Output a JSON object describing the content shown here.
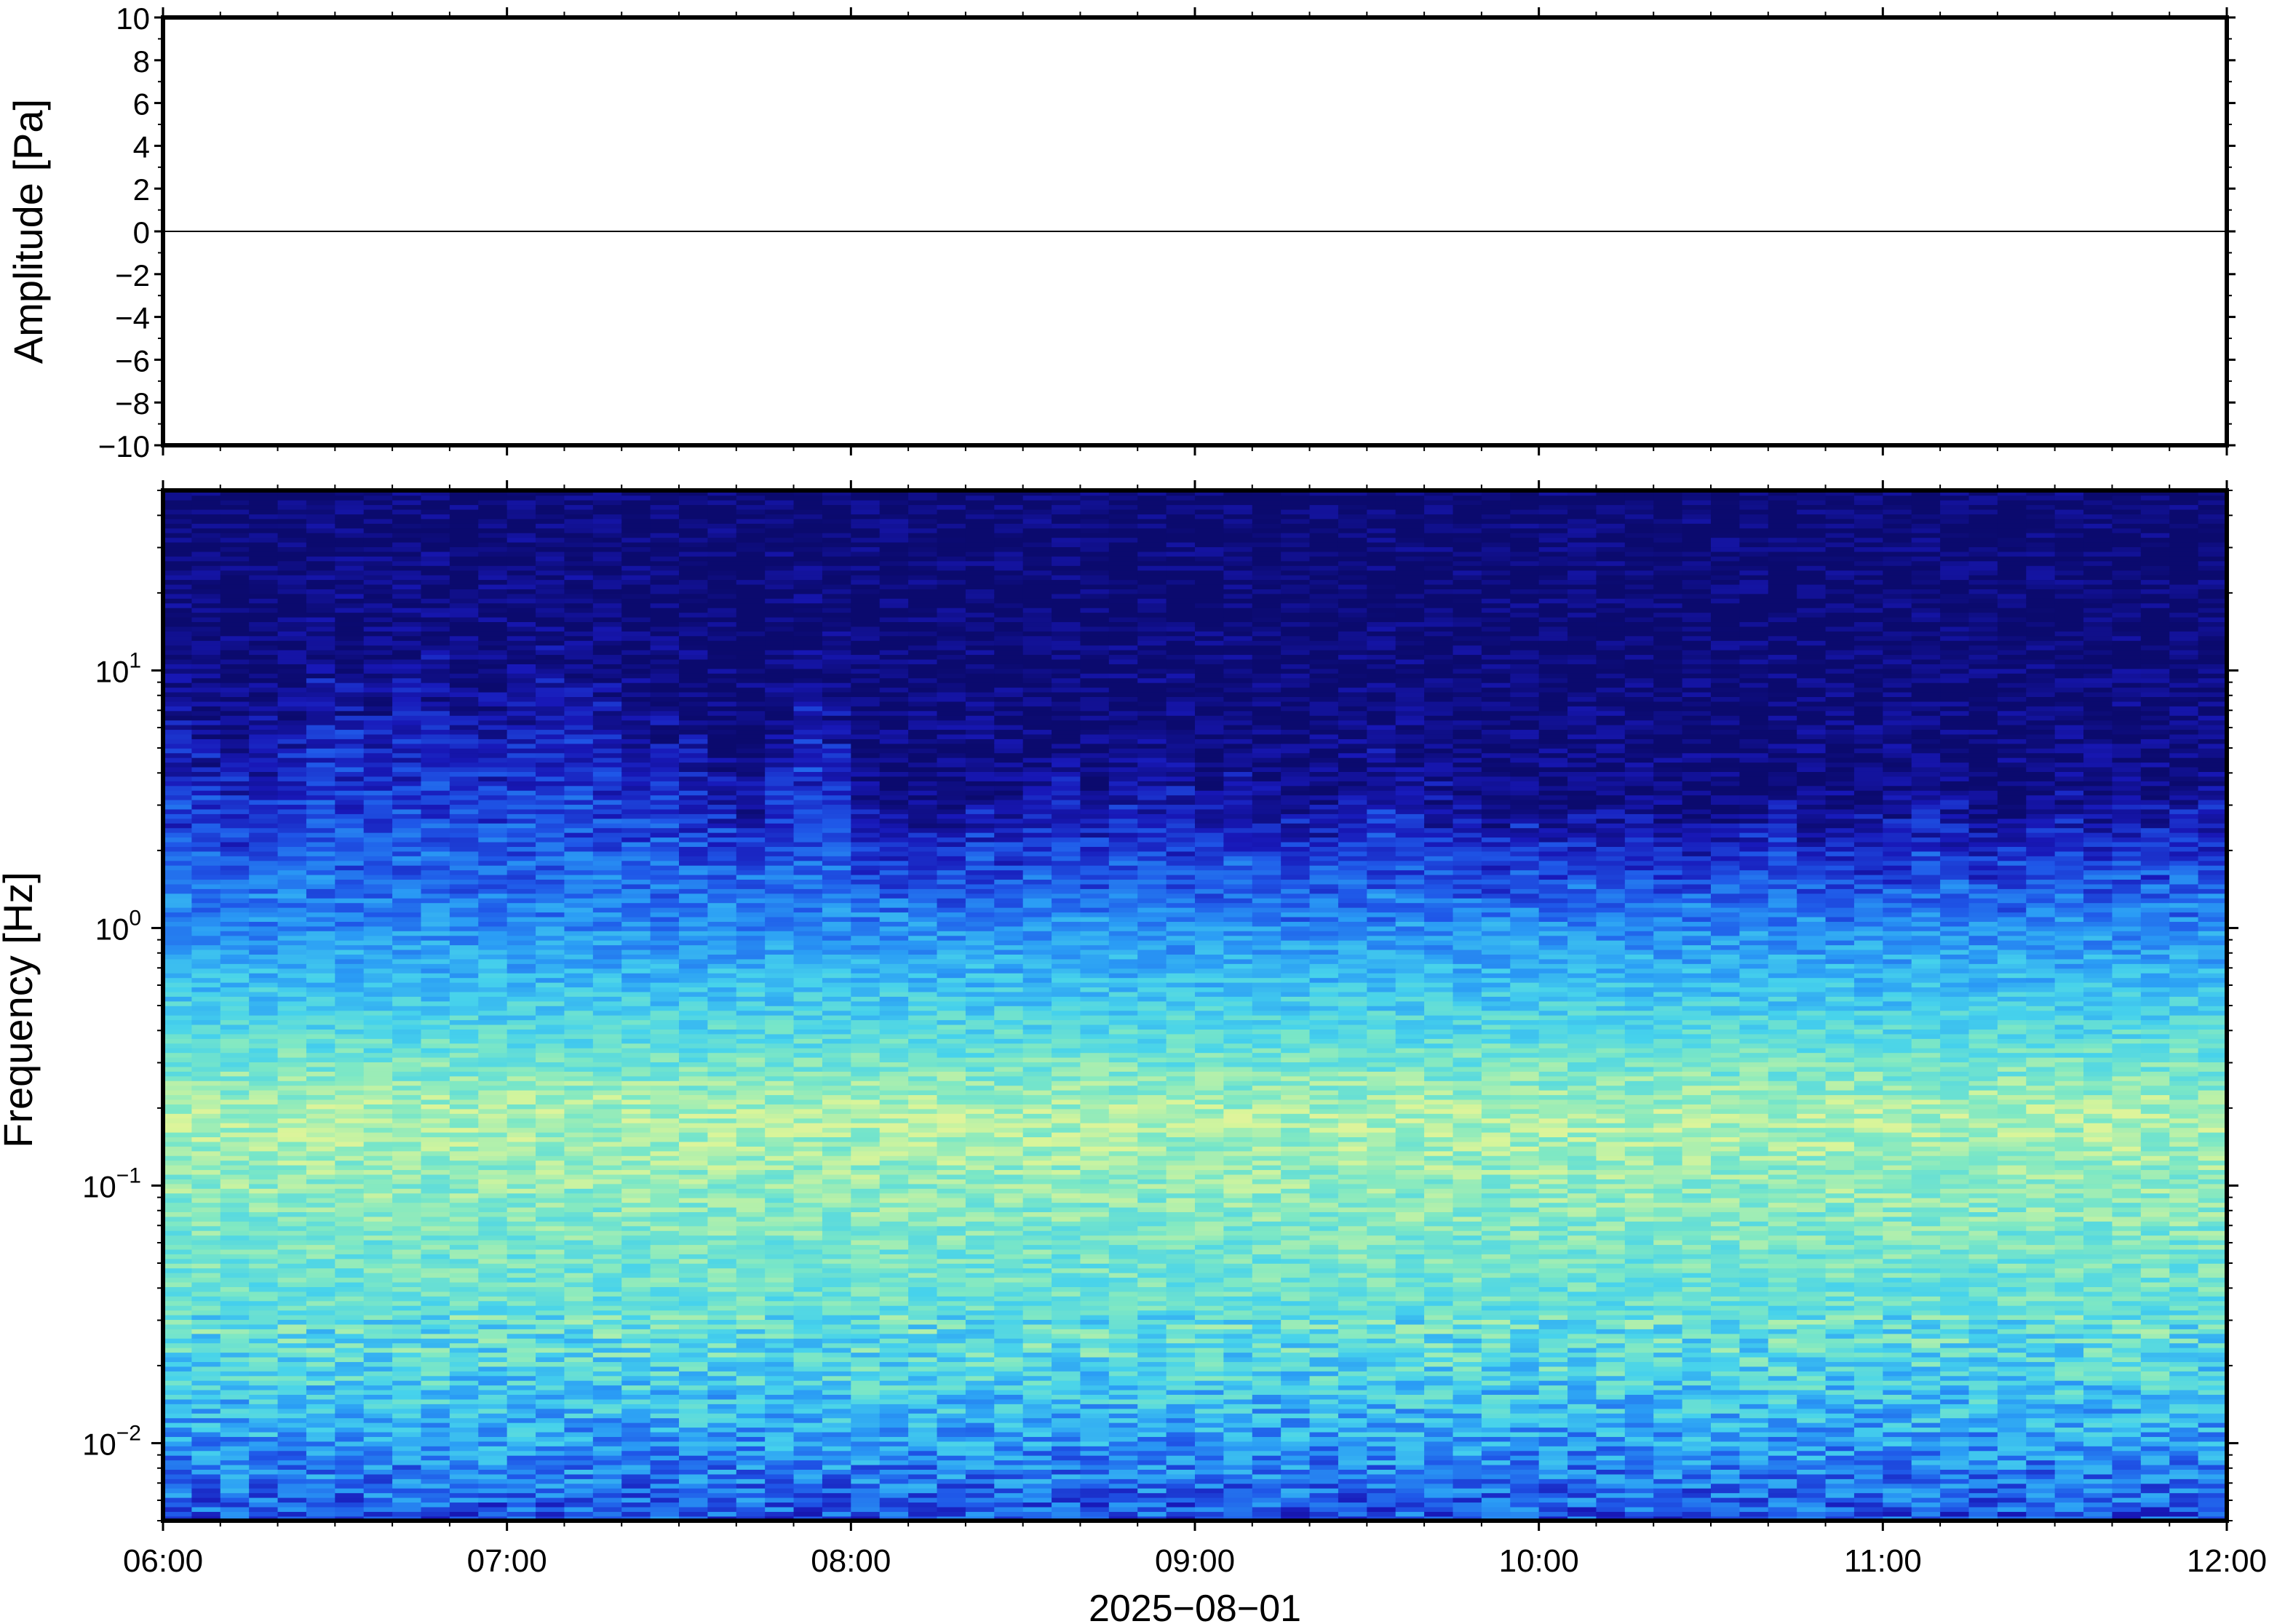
{
  "chart_data": [
    {
      "type": "line",
      "ylabel": "Amplitude [Pa]",
      "ylim": [
        -10,
        10
      ],
      "yticks": [
        "10",
        "8",
        "6",
        "4",
        "2",
        "0",
        "−2",
        "−4",
        "−6",
        "−8",
        "−10"
      ],
      "ytick_values": [
        10,
        8,
        6,
        4,
        2,
        0,
        -2,
        -4,
        -6,
        -8,
        -10
      ],
      "xlim": [
        "06:00",
        "12:00"
      ],
      "series": [
        {
          "x": [
            "06:00",
            "12:00"
          ],
          "y": [
            0,
            0
          ],
          "color": "#000000"
        }
      ],
      "grid": false
    },
    {
      "type": "heatmap",
      "ylabel": "Frequency [Hz]",
      "yscale": "log",
      "ylim": [
        0.005,
        50
      ],
      "yticks": [
        {
          "base": "10",
          "exp": "1",
          "value": 10
        },
        {
          "base": "10",
          "exp": "0",
          "value": 1
        },
        {
          "base": "10",
          "exp": "−1",
          "value": 0.1
        },
        {
          "base": "10",
          "exp": "−2",
          "value": 0.01
        }
      ],
      "xlim": [
        "06:00",
        "12:00"
      ],
      "xticks": [
        "06:00",
        "07:00",
        "08:00",
        "09:00",
        "10:00",
        "11:00",
        "12:00"
      ],
      "xlabel": "2025−08−01",
      "colormap": [
        "#0b0a6e",
        "#1818b8",
        "#1f57e8",
        "#2a9cf5",
        "#46d2ec",
        "#7ee8c4",
        "#d8f59a",
        "#f5f0a0"
      ],
      "time_columns": [
        "06:00",
        "06:05",
        "06:10",
        "06:15",
        "06:20",
        "06:25",
        "06:30",
        "06:35",
        "06:40",
        "06:45",
        "06:50",
        "06:55",
        "07:00",
        "07:05",
        "07:10",
        "07:15",
        "07:20",
        "07:25",
        "07:30",
        "07:35",
        "07:40",
        "07:45",
        "07:50",
        "07:55",
        "08:00",
        "08:05",
        "08:10",
        "08:15",
        "08:20",
        "08:25",
        "08:30",
        "08:35",
        "08:40",
        "08:45",
        "08:50",
        "08:55",
        "09:00",
        "09:05",
        "09:10",
        "09:15",
        "09:20",
        "09:25",
        "09:30",
        "09:35",
        "09:40",
        "09:45",
        "09:50",
        "09:55",
        "10:00",
        "10:05",
        "10:10",
        "10:15",
        "10:20",
        "10:25",
        "10:30",
        "10:35",
        "10:40",
        "10:45",
        "10:50",
        "10:55",
        "11:00",
        "11:05",
        "11:10",
        "11:15",
        "11:20",
        "11:25",
        "11:30",
        "11:35",
        "11:40",
        "11:45",
        "11:50",
        "11:55"
      ],
      "noise_edge_hz": [
        8.5,
        7.0,
        6.0,
        7.5,
        9.0,
        12.5,
        13.0,
        12.0,
        12.5,
        13.0,
        11.0,
        10.0,
        13.5,
        14.0,
        13.0,
        11.0,
        8.0,
        7.0,
        6.5,
        5.0,
        4.0,
        8.0,
        11.0,
        9.0,
        3.5,
        3.5,
        3.0,
        3.5,
        4.0,
        3.5,
        4.5,
        5.0,
        4.0,
        4.5,
        5.0,
        4.5,
        4.0,
        4.5,
        3.8,
        3.5,
        3.5,
        4.5,
        5.5,
        5.0,
        4.0,
        3.5,
        3.0,
        3.5,
        3.0,
        3.2,
        3.5,
        3.0,
        2.8,
        3.0,
        3.2,
        3.5,
        3.5,
        3.0,
        3.2,
        3.0,
        3.5,
        4.0,
        3.8,
        3.0,
        3.0,
        3.5,
        3.8,
        3.5,
        4.0,
        3.5,
        4.0,
        3.8
      ]
    }
  ]
}
